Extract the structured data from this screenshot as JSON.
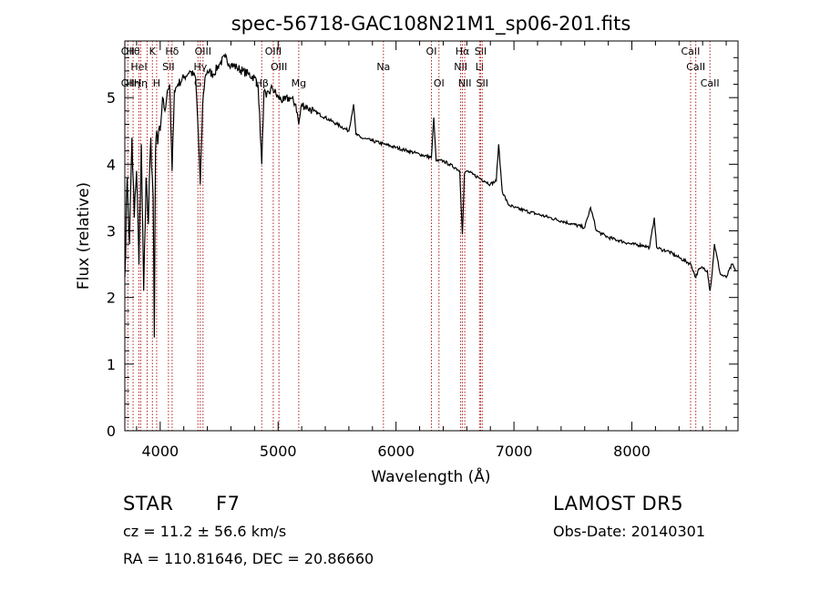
{
  "chart_data": {
    "type": "line",
    "title": "spec-56718-GAC108N21M1_sp06-201.fits",
    "xlabel": "Wavelength (Å)",
    "ylabel": "Flux (relative)",
    "xlim": [
      3700,
      8900
    ],
    "ylim": [
      0,
      5.85
    ],
    "x_ticks": [
      4000,
      5000,
      6000,
      7000,
      8000
    ],
    "y_ticks": [
      0,
      1,
      2,
      3,
      4,
      5
    ],
    "line_color": "#000000",
    "marker_color": "#b22222",
    "series": [
      {
        "x": [
          3700,
          3720,
          3740,
          3760,
          3780,
          3800,
          3820,
          3840,
          3860,
          3880,
          3900,
          3920,
          3940,
          3950,
          3960,
          3970,
          3980,
          4000,
          4020,
          4040,
          4060,
          4080,
          4101,
          4120,
          4150,
          4200,
          4250,
          4300,
          4320,
          4340,
          4360,
          4380,
          4400,
          4450,
          4500,
          4550,
          4600,
          4650,
          4700,
          4750,
          4800,
          4830,
          4861,
          4880,
          4900,
          4950,
          5000,
          5050,
          5100,
          5150,
          5175,
          5200,
          5250,
          5300,
          5400,
          5500,
          5600,
          5640,
          5660,
          5700,
          5800,
          5900,
          6000,
          6100,
          6200,
          6300,
          6320,
          6340,
          6400,
          6450,
          6500,
          6540,
          6563,
          6580,
          6600,
          6650,
          6700,
          6750,
          6800,
          6850,
          6870,
          6900,
          6950,
          7000,
          7100,
          7200,
          7300,
          7400,
          7500,
          7600,
          7650,
          7700,
          7750,
          7800,
          7900,
          8000,
          8100,
          8150,
          8190,
          8210,
          8250,
          8300,
          8400,
          8500,
          8542,
          8560,
          8600,
          8640,
          8662,
          8680,
          8700,
          8750,
          8800,
          8850,
          8880
        ],
        "y": [
          2.3,
          3.8,
          2.8,
          4.4,
          3.2,
          3.9,
          2.5,
          4.3,
          2.1,
          3.8,
          3.1,
          4.4,
          3.5,
          1.4,
          4.2,
          4.5,
          4.3,
          4.5,
          5.0,
          4.8,
          5.1,
          5.2,
          3.9,
          5.1,
          5.2,
          5.3,
          5.4,
          5.3,
          4.6,
          3.7,
          4.9,
          5.3,
          5.4,
          5.35,
          5.5,
          5.6,
          5.5,
          5.45,
          5.4,
          5.35,
          5.3,
          5.2,
          4.0,
          5.1,
          5.0,
          5.15,
          5.0,
          4.95,
          5.0,
          4.9,
          4.6,
          4.9,
          4.85,
          4.8,
          4.7,
          4.6,
          4.5,
          4.9,
          4.45,
          4.4,
          4.35,
          4.3,
          4.25,
          4.2,
          4.15,
          4.1,
          4.7,
          4.05,
          4.05,
          4.0,
          3.95,
          3.9,
          2.95,
          3.85,
          3.9,
          3.85,
          3.8,
          3.75,
          3.7,
          3.75,
          4.3,
          3.6,
          3.4,
          3.35,
          3.3,
          3.25,
          3.2,
          3.15,
          3.1,
          3.05,
          3.35,
          3.0,
          2.95,
          2.9,
          2.85,
          2.8,
          2.78,
          2.75,
          3.2,
          2.75,
          2.72,
          2.7,
          2.6,
          2.5,
          2.3,
          2.4,
          2.45,
          2.4,
          2.1,
          2.35,
          2.8,
          2.35,
          2.3,
          2.5,
          2.4
        ]
      }
    ],
    "markers": [
      {
        "x": 3726,
        "top": "OII",
        "mid": "",
        "bot": "OII"
      },
      {
        "x": 3770,
        "top": "Hθ",
        "mid": "",
        "bot": "Hη"
      },
      {
        "x": 3820,
        "top": "",
        "mid": "HeI",
        "bot": ""
      },
      {
        "x": 3835,
        "top": "",
        "mid": "",
        "bot": "Hη"
      },
      {
        "x": 3889,
        "top": "",
        "mid": "",
        "bot": ""
      },
      {
        "x": 3934,
        "top": "K",
        "mid": "",
        "bot": ""
      },
      {
        "x": 3970,
        "top": "",
        "mid": "",
        "bot": "H"
      },
      {
        "x": 4070,
        "top": "",
        "mid": "SII",
        "bot": ""
      },
      {
        "x": 4101,
        "top": "Hδ",
        "mid": "",
        "bot": ""
      },
      {
        "x": 4320,
        "top": "",
        "mid": "",
        "bot": "G"
      },
      {
        "x": 4340,
        "top": "",
        "mid": "Hγ",
        "bot": ""
      },
      {
        "x": 4363,
        "top": "OIII",
        "mid": "",
        "bot": ""
      },
      {
        "x": 4861,
        "top": "",
        "mid": "",
        "bot": "Hβ"
      },
      {
        "x": 4959,
        "top": "OIII",
        "mid": "",
        "bot": ""
      },
      {
        "x": 5007,
        "top": "",
        "mid": "OIII",
        "bot": ""
      },
      {
        "x": 5175,
        "top": "",
        "mid": "",
        "bot": "Mg"
      },
      {
        "x": 5893,
        "top": "",
        "mid": "Na",
        "bot": ""
      },
      {
        "x": 6300,
        "top": "OI",
        "mid": "",
        "bot": ""
      },
      {
        "x": 6364,
        "top": "",
        "mid": "",
        "bot": "OI"
      },
      {
        "x": 6548,
        "top": "",
        "mid": "NII",
        "bot": ""
      },
      {
        "x": 6563,
        "top": "Hα",
        "mid": "",
        "bot": ""
      },
      {
        "x": 6583,
        "top": "",
        "mid": "",
        "bot": "NII"
      },
      {
        "x": 6708,
        "top": "",
        "mid": "Li",
        "bot": ""
      },
      {
        "x": 6717,
        "top": "SII",
        "mid": "",
        "bot": ""
      },
      {
        "x": 6731,
        "top": "",
        "mid": "",
        "bot": "SII"
      },
      {
        "x": 8498,
        "top": "CaII",
        "mid": "",
        "bot": ""
      },
      {
        "x": 8542,
        "top": "",
        "mid": "CaII",
        "bot": ""
      },
      {
        "x": 8662,
        "top": "",
        "mid": "",
        "bot": "CaII"
      }
    ]
  },
  "info": {
    "class": "STAR",
    "subclass": "F7",
    "survey": "LAMOST DR5",
    "cz": "cz = 11.2 ± 56.6 km/s",
    "obs_date": "Obs-Date: 20140301",
    "coords": "RA = 110.81646, DEC =  20.86660"
  }
}
